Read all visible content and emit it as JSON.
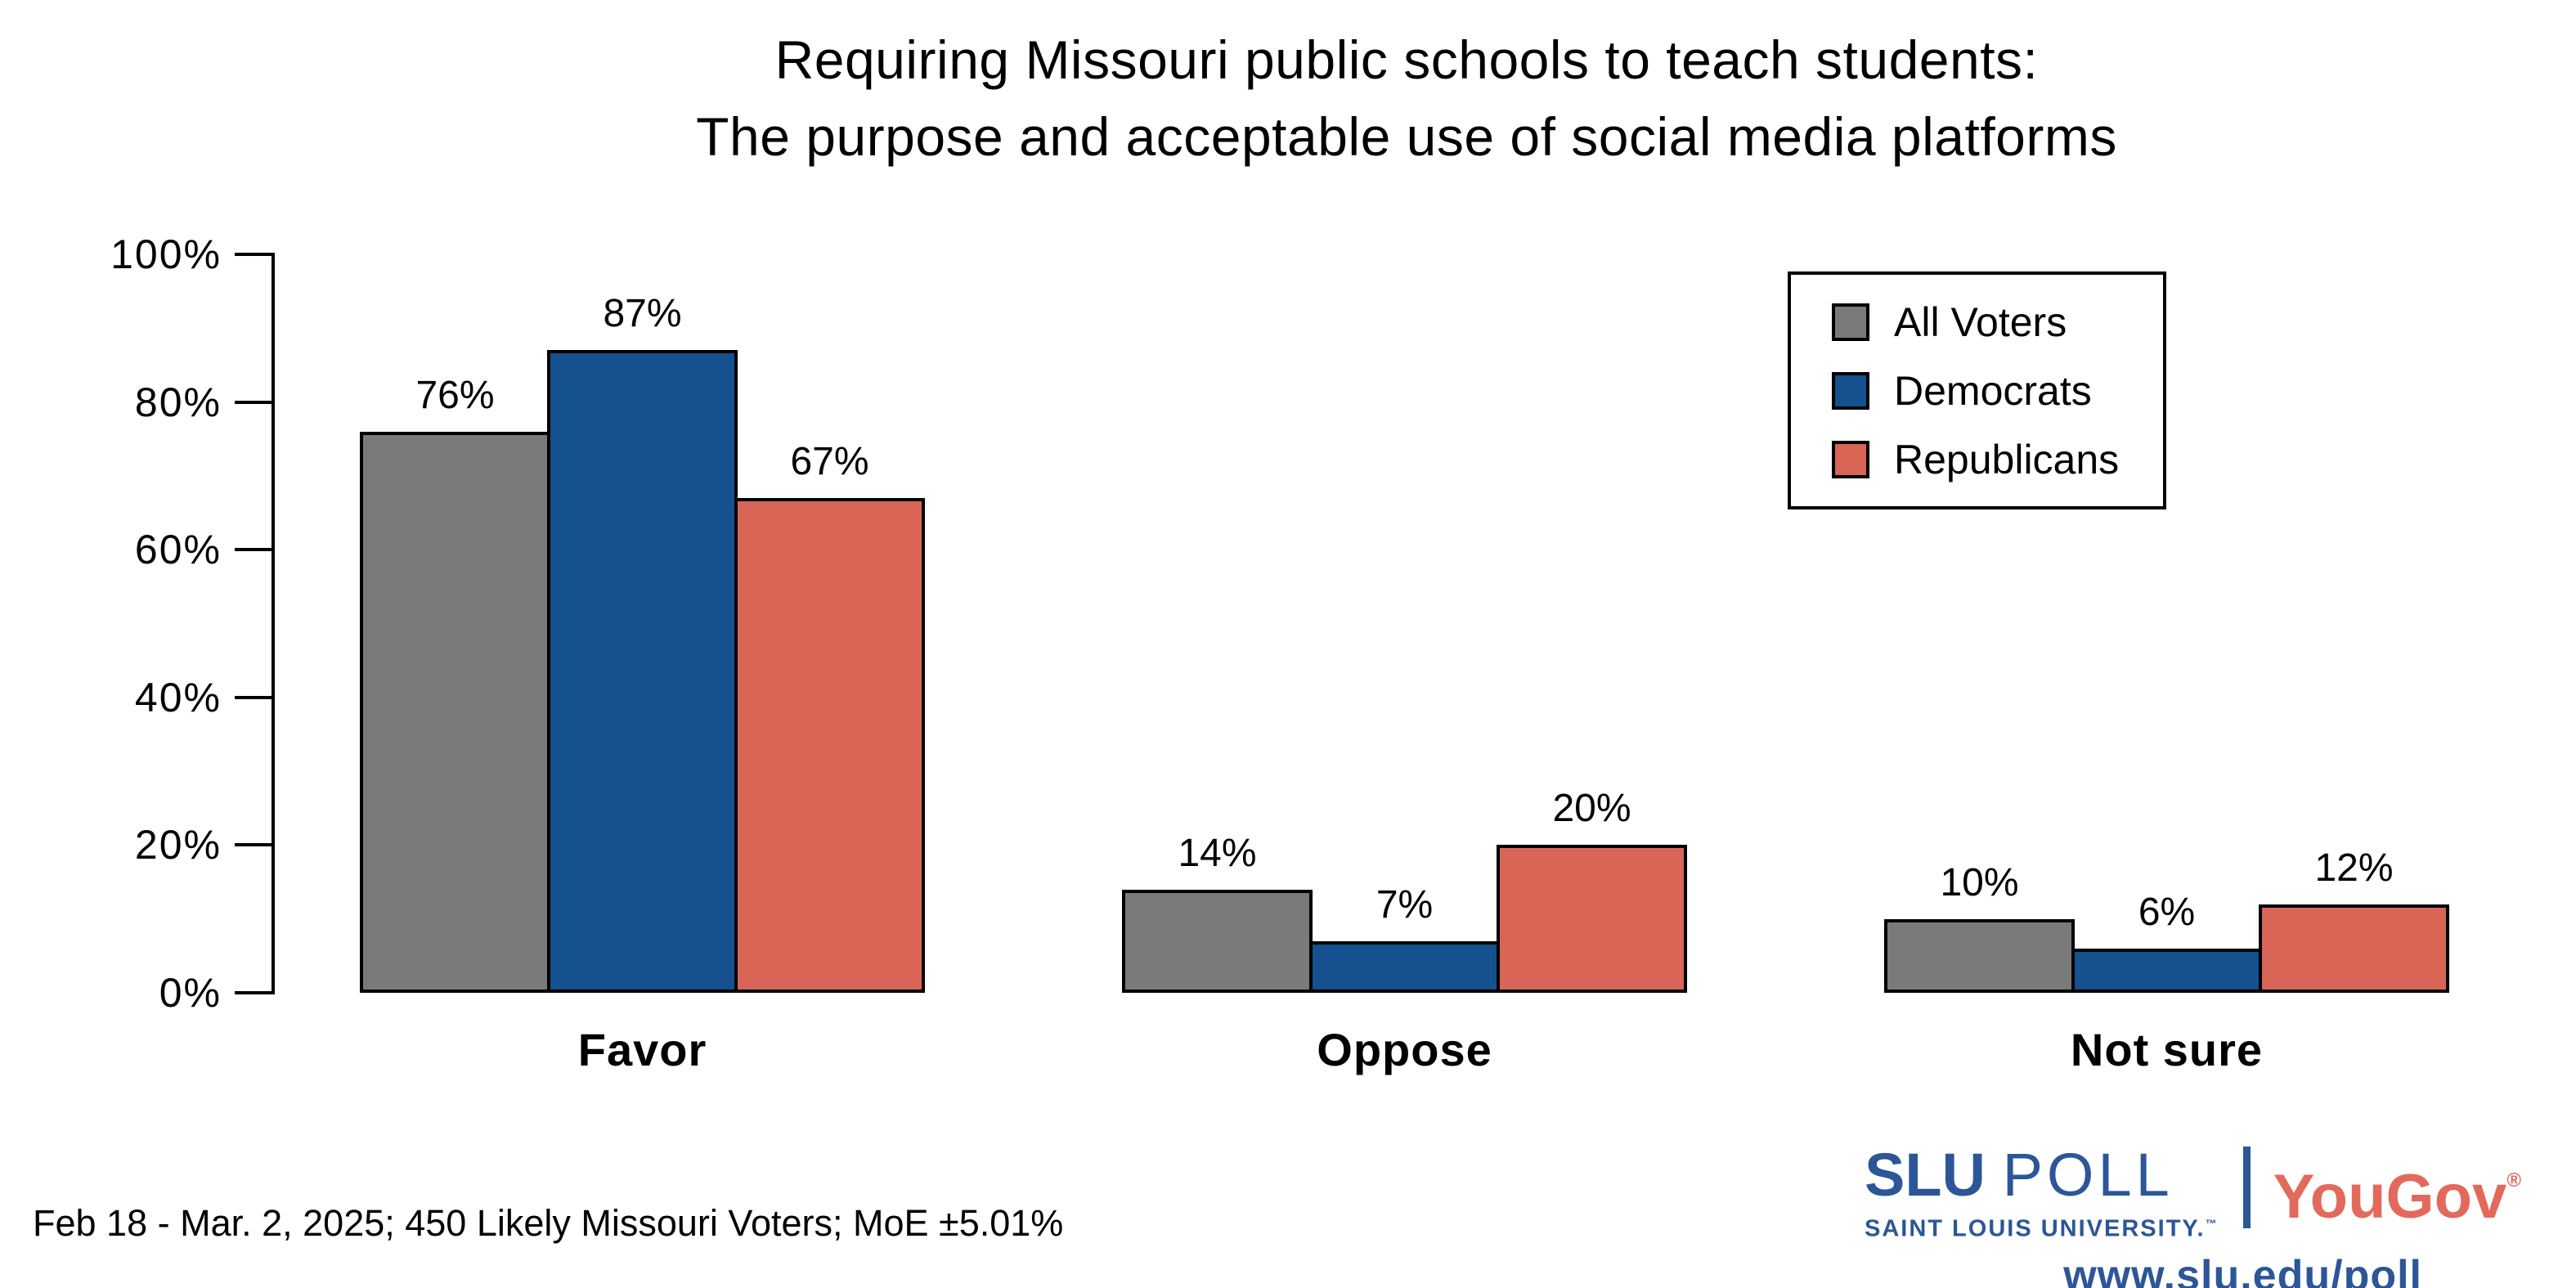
{
  "title": {
    "line1": "Requiring Missouri public schools to teach students:",
    "line2": "The purpose and acceptable use of social media platforms"
  },
  "chart_data": {
    "type": "bar",
    "categories": [
      "Favor",
      "Oppose",
      "Not sure"
    ],
    "series": [
      {
        "name": "All Voters",
        "color": "#7a7a7a",
        "values": [
          76,
          14,
          10
        ]
      },
      {
        "name": "Democrats",
        "color": "#15508f",
        "values": [
          87,
          7,
          6
        ]
      },
      {
        "name": "Republicans",
        "color": "#d96556",
        "values": [
          67,
          20,
          12
        ]
      }
    ],
    "value_labels": [
      "76%",
      "87%",
      "67%",
      "14%",
      "7%",
      "20%",
      "10%",
      "6%",
      "12%"
    ],
    "value_label_suffix": "%",
    "ylim": [
      0,
      100
    ],
    "yticks": [
      0,
      20,
      40,
      60,
      80,
      100
    ],
    "ytick_labels": [
      "0%",
      "20%",
      "40%",
      "60%",
      "80%",
      "100%"
    ],
    "grid": false,
    "legend_position": "upper right",
    "bar_edge_color": "#000000"
  },
  "footer": {
    "note": "Feb 18 - Mar. 2, 2025; 450 Likely Missouri Voters; MoE ±5.01%"
  },
  "branding": {
    "slu": "SLU",
    "poll": "POLL",
    "slu_subtitle": "SAINT LOUIS UNIVERSITY.",
    "slu_tm": "™",
    "yougov": "YouGov",
    "yougov_reg": "®",
    "url": "www.slu.edu/poll",
    "slu_blue": "#2c5697",
    "yougov_red": "#e3695c"
  }
}
